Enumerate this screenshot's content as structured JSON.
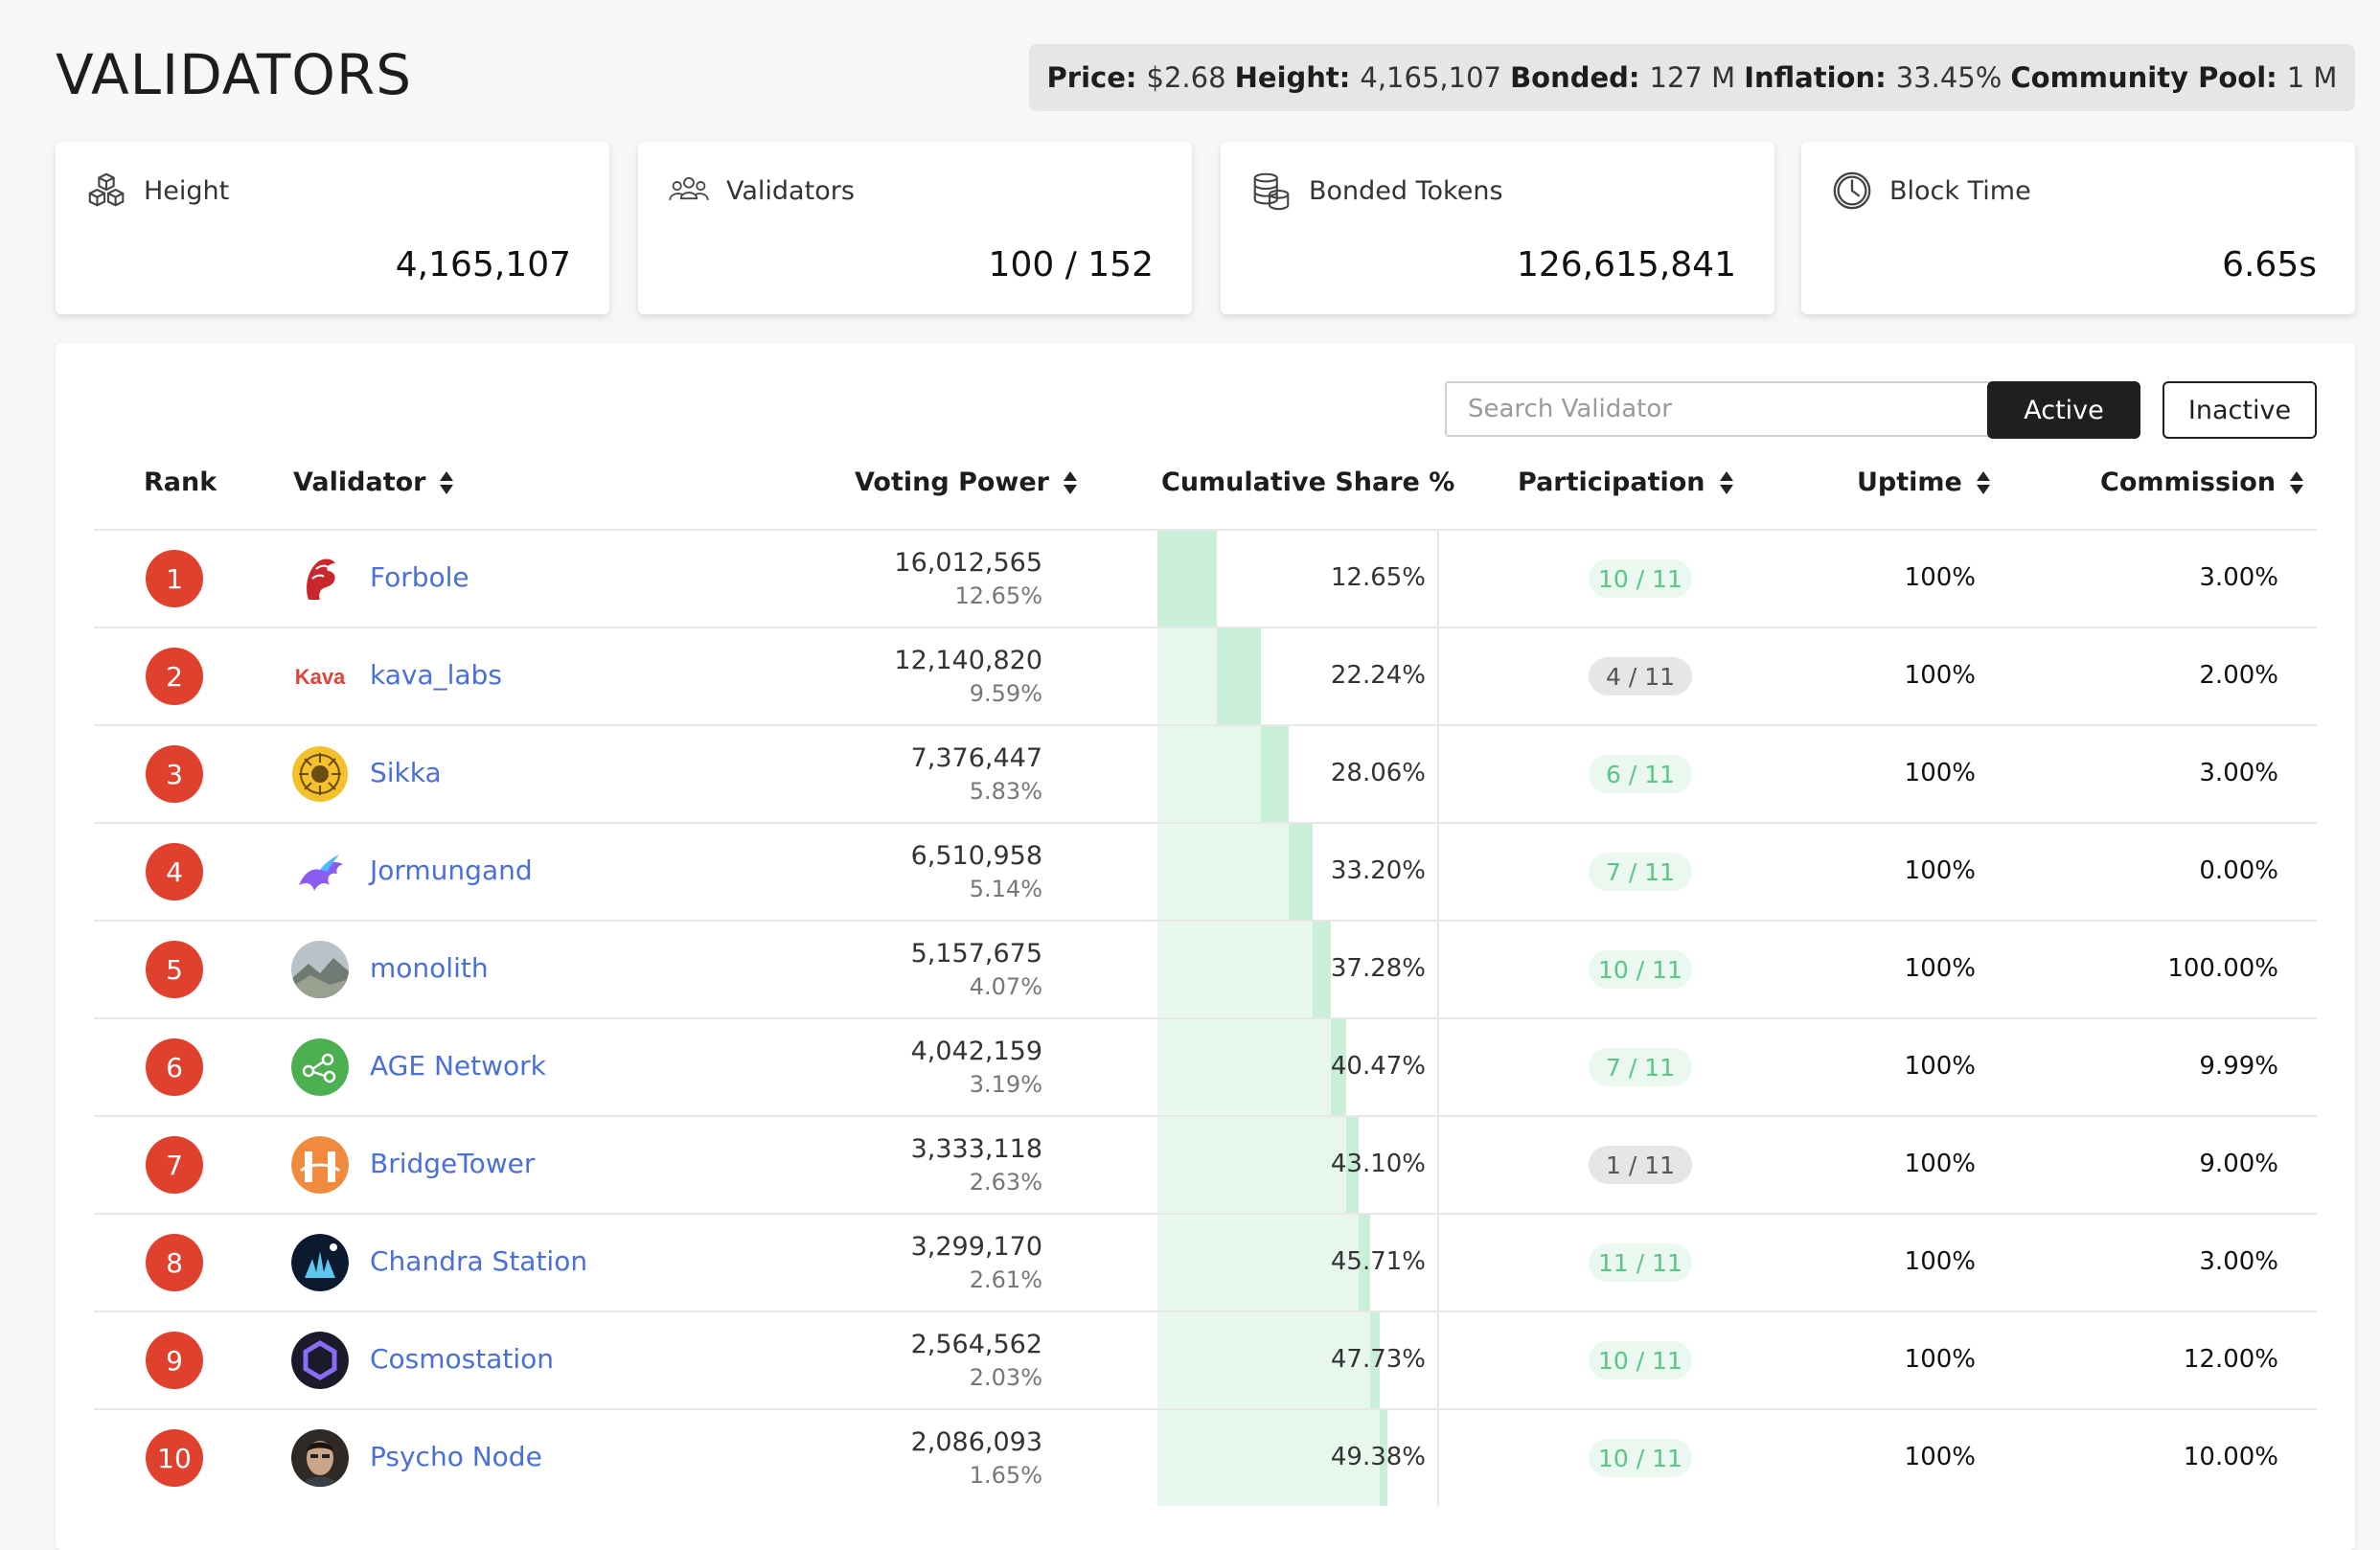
{
  "page_title": "VALIDATORS",
  "stats": [
    {
      "label": "Price:",
      "value": "$2.68"
    },
    {
      "label": "Height:",
      "value": "4,165,107"
    },
    {
      "label": "Bonded:",
      "value": "127 M"
    },
    {
      "label": "Inflation:",
      "value": "33.45%"
    },
    {
      "label": "Community Pool:",
      "value": "1 M"
    }
  ],
  "cards": [
    {
      "label": "Height",
      "value": "4,165,107",
      "icon": "cubes-icon"
    },
    {
      "label": "Validators",
      "value": "100 / 152",
      "icon": "users-icon"
    },
    {
      "label": "Bonded Tokens",
      "value": "126,615,841",
      "icon": "coins-icon"
    },
    {
      "label": "Block Time",
      "value": "6.65s",
      "icon": "clock-icon"
    }
  ],
  "search": {
    "placeholder": "Search Validator",
    "value": ""
  },
  "filters": {
    "active": "Active",
    "inactive": "Inactive"
  },
  "columns": {
    "rank": "Rank",
    "validator": "Validator",
    "voting_power": "Voting Power",
    "cumulative": "Cumulative Share %",
    "participation": "Participation",
    "uptime": "Uptime",
    "commission": "Commission"
  },
  "validators": [
    {
      "rank": "1",
      "name": "Forbole",
      "vp": "16,012,565",
      "vp_pct": "12.65%",
      "cum": "12.65%",
      "part": "10 / 11",
      "part_status": "good",
      "uptime": "100%",
      "commission": "3.00%",
      "share": 12.65,
      "cumulative": 12.65,
      "avatar": "forbole-logo"
    },
    {
      "rank": "2",
      "name": "kava_labs",
      "vp": "12,140,820",
      "vp_pct": "9.59%",
      "cum": "22.24%",
      "part": "4 / 11",
      "part_status": "bad",
      "uptime": "100%",
      "commission": "2.00%",
      "share": 9.59,
      "cumulative": 22.24,
      "avatar": "kava-logo",
      "avatar_text": "Kava"
    },
    {
      "rank": "3",
      "name": "Sikka",
      "vp": "7,376,447",
      "vp_pct": "5.83%",
      "cum": "28.06%",
      "part": "6 / 11",
      "part_status": "good",
      "uptime": "100%",
      "commission": "3.00%",
      "share": 5.83,
      "cumulative": 28.06,
      "avatar": "sikka-logo"
    },
    {
      "rank": "4",
      "name": "Jormungand",
      "vp": "6,510,958",
      "vp_pct": "5.14%",
      "cum": "33.20%",
      "part": "7 / 11",
      "part_status": "good",
      "uptime": "100%",
      "commission": "0.00%",
      "share": 5.14,
      "cumulative": 33.2,
      "avatar": "jormungand-logo"
    },
    {
      "rank": "5",
      "name": "monolith",
      "vp": "5,157,675",
      "vp_pct": "4.07%",
      "cum": "37.28%",
      "part": "10 / 11",
      "part_status": "good",
      "uptime": "100%",
      "commission": "100.00%",
      "share": 4.07,
      "cumulative": 37.28,
      "avatar": "monolith-logo"
    },
    {
      "rank": "6",
      "name": "AGE Network",
      "vp": "4,042,159",
      "vp_pct": "3.19%",
      "cum": "40.47%",
      "part": "7 / 11",
      "part_status": "good",
      "uptime": "100%",
      "commission": "9.99%",
      "share": 3.19,
      "cumulative": 40.47,
      "avatar": "age-network-logo"
    },
    {
      "rank": "7",
      "name": "BridgeTower",
      "vp": "3,333,118",
      "vp_pct": "2.63%",
      "cum": "43.10%",
      "part": "1 / 11",
      "part_status": "bad",
      "uptime": "100%",
      "commission": "9.00%",
      "share": 2.63,
      "cumulative": 43.1,
      "avatar": "bridgetower-logo"
    },
    {
      "rank": "8",
      "name": "Chandra Station",
      "vp": "3,299,170",
      "vp_pct": "2.61%",
      "cum": "45.71%",
      "part": "11 / 11",
      "part_status": "good",
      "uptime": "100%",
      "commission": "3.00%",
      "share": 2.61,
      "cumulative": 45.71,
      "avatar": "chandra-logo"
    },
    {
      "rank": "9",
      "name": "Cosmostation",
      "vp": "2,564,562",
      "vp_pct": "2.03%",
      "cum": "47.73%",
      "part": "10 / 11",
      "part_status": "good",
      "uptime": "100%",
      "commission": "12.00%",
      "share": 2.03,
      "cumulative": 47.73,
      "avatar": "cosmostation-logo"
    },
    {
      "rank": "10",
      "name": "Psycho Node",
      "vp": "2,086,093",
      "vp_pct": "1.65%",
      "cum": "49.38%",
      "part": "10 / 11",
      "part_status": "good",
      "uptime": "100%",
      "commission": "10.00%",
      "share": 1.65,
      "cumulative": 49.38,
      "avatar": "psycho-node-logo"
    }
  ],
  "colors": {
    "rank_badge": "#e0412e",
    "link": "#4a6fd6",
    "part_good": "#5cc488",
    "cum_fill": "#e8f7ee",
    "cum_segment": "#c9efd8"
  }
}
